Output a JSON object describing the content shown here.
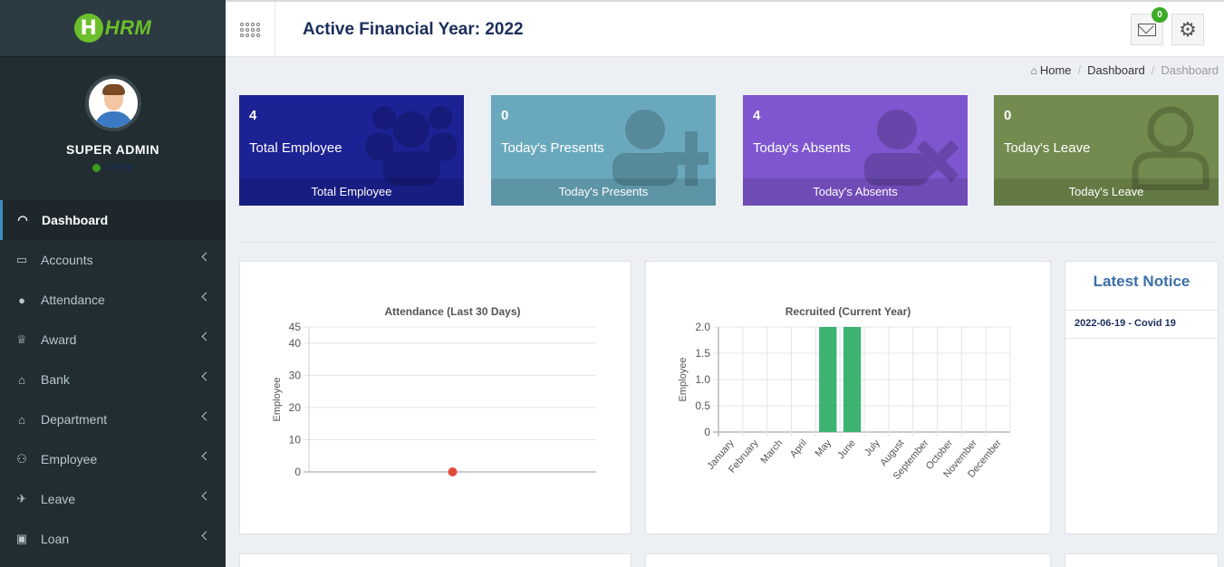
{
  "brand": {
    "logo_letter": "H",
    "logo_text": "HRM"
  },
  "user": {
    "name": "SUPER ADMIN",
    "status": "Online"
  },
  "sidebar": {
    "items": [
      {
        "label": "Dashboard",
        "icon": "dashboard-icon",
        "active": true
      },
      {
        "label": "Accounts",
        "icon": "briefcase-icon"
      },
      {
        "label": "Attendance",
        "icon": "user-icon"
      },
      {
        "label": "Award",
        "icon": "trophy-icon"
      },
      {
        "label": "Bank",
        "icon": "bank-icon"
      },
      {
        "label": "Department",
        "icon": "bank-icon"
      },
      {
        "label": "Employee",
        "icon": "users-icon"
      },
      {
        "label": "Leave",
        "icon": "plane-icon"
      },
      {
        "label": "Loan",
        "icon": "money-icon"
      }
    ]
  },
  "header": {
    "title": "Active Financial Year: 2022",
    "mail_badge": "0"
  },
  "breadcrumb": {
    "home": "Home",
    "dashboard": "Dashboard",
    "current": "Dashboard"
  },
  "stats": [
    {
      "value": "4",
      "label": "Total Employee",
      "footer": "Total Employee",
      "color": "#1c2194"
    },
    {
      "value": "0",
      "label": "Today's Presents",
      "footer": "Today's Presents",
      "color": "#6aa9bd"
    },
    {
      "value": "4",
      "label": "Today's Absents",
      "footer": "Today's Absents",
      "color": "#7e56cf"
    },
    {
      "value": "0",
      "label": "Today's Leave",
      "footer": "Today's Leave",
      "color": "#728b4e"
    }
  ],
  "notice": {
    "title": "Latest Notice",
    "items": [
      "2022-06-19 - Covid 19"
    ]
  },
  "chart_data": [
    {
      "type": "line",
      "title": "Attendance (Last 30 Days)",
      "ylabel": "Employee",
      "xlabel": "",
      "ylim": [
        0,
        45
      ],
      "yticks": [
        0,
        10,
        20,
        30,
        40,
        45
      ],
      "points": [
        {
          "x": 0.5,
          "y": 0
        }
      ],
      "point_color": "#e04a3b",
      "grid": true
    },
    {
      "type": "bar",
      "title": "Recruited (Current Year)",
      "ylabel": "Employee",
      "xlabel": "",
      "ylim": [
        0,
        2
      ],
      "yticks": [
        "0",
        "0.5",
        "1.0",
        "1.5",
        "2.0"
      ],
      "categories": [
        "January",
        "February",
        "March",
        "April",
        "May",
        "June",
        "July",
        "August",
        "September",
        "October",
        "November",
        "December"
      ],
      "values": [
        0,
        0,
        0,
        0,
        2,
        2,
        0,
        0,
        0,
        0,
        0,
        0
      ],
      "bar_color": "#3cb371",
      "grid": true
    }
  ]
}
